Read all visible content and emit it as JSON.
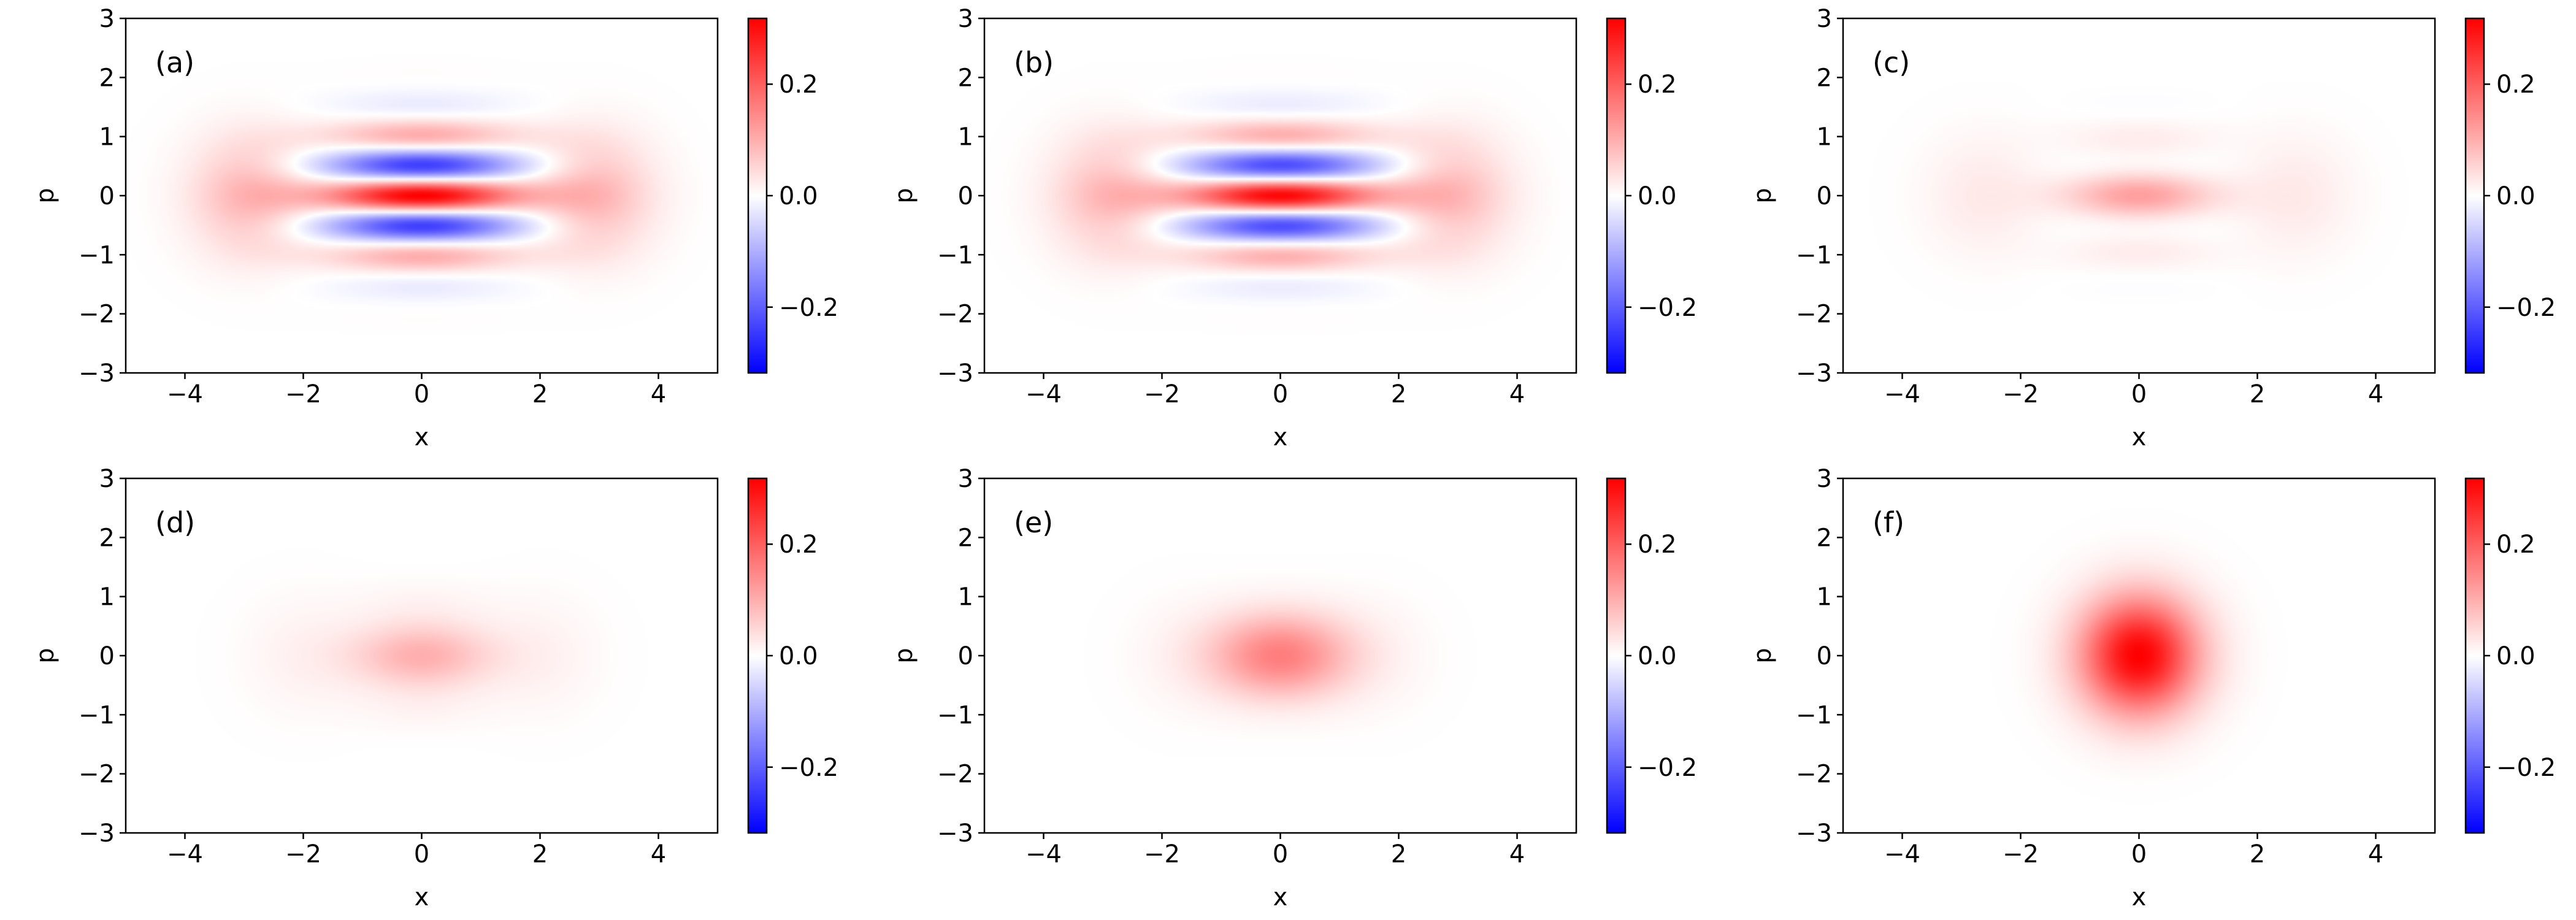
{
  "chart_data": [
    {
      "type": "heatmap",
      "panel_label": "(a)",
      "xlabel": "x",
      "ylabel": "p",
      "xlim": [
        -5,
        5
      ],
      "ylim": [
        -3,
        3
      ],
      "x_ticks": [
        "−4",
        "−2",
        "0",
        "2",
        "4"
      ],
      "y_ticks": [
        "−3",
        "−2",
        "−1",
        "0",
        "1",
        "2",
        "3"
      ],
      "colorbar": {
        "range": [
          -0.318,
          0.318
        ],
        "ticks": [
          "−0.2",
          "0.0",
          "0.2"
        ]
      },
      "colormap": [
        "#0000ff",
        "#ffffff",
        "#ff0000"
      ],
      "grid": false,
      "field": {
        "alpha": 2.9,
        "gauss_weight": 0.52,
        "fringe_amp": 1.0,
        "fringe_period": 1.1,
        "fringe_width": 1.6,
        "central_value": 0.318
      }
    },
    {
      "type": "heatmap",
      "panel_label": "(b)",
      "xlabel": "x",
      "ylabel": "p",
      "xlim": [
        -5,
        5
      ],
      "ylim": [
        -3,
        3
      ],
      "x_ticks": [
        "−4",
        "−2",
        "0",
        "2",
        "4"
      ],
      "y_ticks": [
        "−3",
        "−2",
        "−1",
        "0",
        "1",
        "2",
        "3"
      ],
      "colorbar": {
        "range": [
          -0.318,
          0.318
        ],
        "ticks": [
          "−0.2",
          "0.0",
          "0.2"
        ]
      },
      "colormap": [
        "#0000ff",
        "#ffffff",
        "#ff0000"
      ],
      "grid": false,
      "field": {
        "alpha": 2.85,
        "gauss_weight": 0.52,
        "fringe_amp": 0.97,
        "fringe_period": 1.1,
        "fringe_width": 1.6,
        "central_value": 0.31
      }
    },
    {
      "type": "heatmap",
      "panel_label": "(c)",
      "xlabel": "x",
      "ylabel": "p",
      "xlim": [
        -5,
        5
      ],
      "ylim": [
        -3,
        3
      ],
      "x_ticks": [
        "−4",
        "−2",
        "0",
        "2",
        "4"
      ],
      "y_ticks": [
        "−3",
        "−2",
        "−1",
        "0",
        "1",
        "2",
        "3"
      ],
      "colorbar": {
        "range": [
          -0.318,
          0.318
        ],
        "ticks": [
          "−0.2",
          "0.0",
          "0.2"
        ]
      },
      "colormap": [
        "#0000ff",
        "#ffffff",
        "#ff0000"
      ],
      "grid": false,
      "field": {
        "alpha": 2.6,
        "gauss_weight": 0.42,
        "fringe_amp": 0.35,
        "fringe_period": 1.1,
        "fringe_width": 1.3,
        "central_value": 0.12
      }
    },
    {
      "type": "heatmap",
      "panel_label": "(d)",
      "xlabel": "x",
      "ylabel": "p",
      "xlim": [
        -5,
        5
      ],
      "ylim": [
        -3,
        3
      ],
      "x_ticks": [
        "−4",
        "−2",
        "0",
        "2",
        "4"
      ],
      "y_ticks": [
        "−3",
        "−2",
        "−1",
        "0",
        "1",
        "2",
        "3"
      ],
      "colorbar": {
        "range": [
          -0.318,
          0.318
        ],
        "ticks": [
          "−0.2",
          "0.0",
          "0.2"
        ]
      },
      "colormap": [
        "#0000ff",
        "#ffffff",
        "#ff0000"
      ],
      "grid": false,
      "field": {
        "alpha": 2.0,
        "gauss_weight": 0.3,
        "fringe_amp": 0.1,
        "fringe_period": 1.2,
        "fringe_width": 1.2,
        "central_value": 0.1
      }
    },
    {
      "type": "heatmap",
      "panel_label": "(e)",
      "xlabel": "x",
      "ylabel": "p",
      "xlim": [
        -5,
        5
      ],
      "ylim": [
        -3,
        3
      ],
      "x_ticks": [
        "−4",
        "−2",
        "0",
        "2",
        "4"
      ],
      "y_ticks": [
        "−3",
        "−2",
        "−1",
        "0",
        "1",
        "2",
        "3"
      ],
      "colorbar": {
        "range": [
          -0.318,
          0.318
        ],
        "ticks": [
          "−0.2",
          "0.0",
          "0.2"
        ]
      },
      "colormap": [
        "#0000ff",
        "#ffffff",
        "#ff0000"
      ],
      "grid": false,
      "field": {
        "alpha": 1.6,
        "gauss_weight": 0.12,
        "fringe_amp": 0.0,
        "fringe_period": 1.2,
        "fringe_width": 1.0,
        "central_value": 0.16
      }
    },
    {
      "type": "heatmap",
      "panel_label": "(f)",
      "xlabel": "x",
      "ylabel": "p",
      "xlim": [
        -5,
        5
      ],
      "ylim": [
        -3,
        3
      ],
      "x_ticks": [
        "−4",
        "−2",
        "0",
        "2",
        "4"
      ],
      "y_ticks": [
        "−3",
        "−2",
        "−1",
        "0",
        "1",
        "2",
        "3"
      ],
      "colorbar": {
        "range": [
          -0.318,
          0.318
        ],
        "ticks": [
          "−0.2",
          "0.0",
          "0.2"
        ]
      },
      "colormap": [
        "#0000ff",
        "#ffffff",
        "#ff0000"
      ],
      "grid": false,
      "field": {
        "alpha": 0.0,
        "gauss_weight": 0.0,
        "fringe_amp": 0.0,
        "fringe_period": 1.0,
        "fringe_width": 1.0,
        "central_value": 0.318
      }
    }
  ]
}
